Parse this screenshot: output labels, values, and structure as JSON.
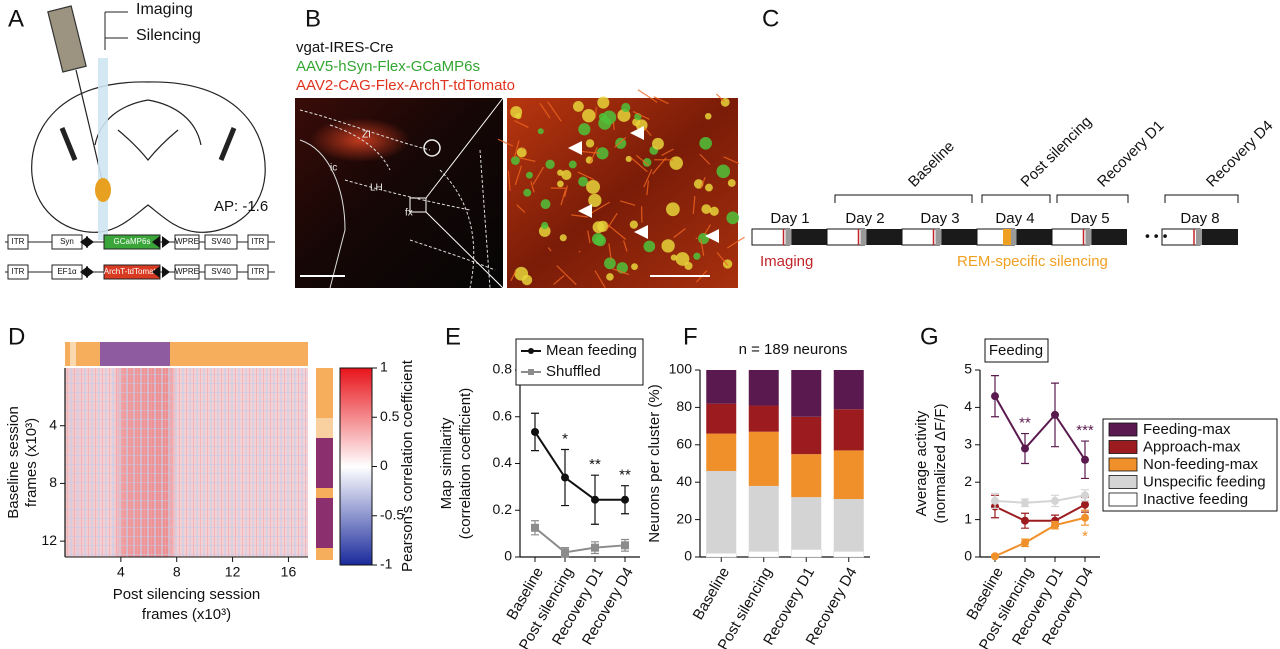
{
  "panels": {
    "A": {
      "letter": "A",
      "fiber_labels": [
        "Imaging",
        "Silencing"
      ],
      "coordinate": "AP: -1.6",
      "constructs": [
        [
          "ITR",
          "Syn",
          "GCaMP6s",
          "WPRE",
          "SV40",
          "ITR"
        ],
        [
          "ITR",
          "EF1α",
          "ArchT-tdTomato",
          "WPRE",
          "SV40",
          "ITR"
        ]
      ]
    },
    "B": {
      "letter": "B",
      "mouse_line": "vgat-IRES-Cre",
      "virus_green": "AAV5-hSyn-Flex-GCaMP6s",
      "virus_red": "AAV2-CAG-Flex-ArchT-tdTomato",
      "regions": [
        "ZI",
        "ic",
        "LH",
        "fx"
      ]
    },
    "C": {
      "letter": "C",
      "phases": [
        "Baseline",
        "Post silencing",
        "Recovery D1",
        "Recovery D4"
      ],
      "days": [
        "Day 1",
        "Day 2",
        "Day 3",
        "Day 4",
        "Day 5",
        "Day 8"
      ],
      "imaging": "Imaging",
      "silencing": "REM-specific silencing"
    }
  },
  "chart_data": [
    {
      "type": "heatmap",
      "letter": "D",
      "xlabel": [
        "Post silencing session",
        "frames (x10³)"
      ],
      "ylabel": [
        "Baseline session",
        "frames (x10³)"
      ],
      "xlim": [
        0,
        17.4
      ],
      "xticks": [
        4,
        8,
        12,
        16
      ],
      "ylim": [
        13.1,
        0
      ],
      "yticks": [
        4,
        8,
        12
      ],
      "colorbar_label": "Pearson's correlation coefficient",
      "clim": [
        -1,
        1
      ],
      "cticks": [
        1,
        0.5,
        0,
        -0.5,
        -1
      ],
      "colors": [
        "#1a2a9c",
        "#ffffff",
        "#e8141b"
      ]
    },
    {
      "type": "line",
      "letter": "E",
      "ylabel": [
        "Map similarity",
        "(correlation coefficient)"
      ],
      "categories": [
        "Baseline",
        "Post silencing",
        "Recovery D1",
        "Recovery D4"
      ],
      "ylim": [
        0,
        0.8
      ],
      "yticks": [
        0,
        0.2,
        0.4,
        0.6,
        0.8
      ],
      "legend": "upper right",
      "series": [
        {
          "name": "Mean feeding",
          "color": "#111111",
          "marker": "circle",
          "values": [
            0.535,
            0.34,
            0.245,
            0.245
          ],
          "errors": [
            0.08,
            0.12,
            0.105,
            0.06
          ],
          "significance": [
            null,
            "*",
            "**",
            "**"
          ]
        },
        {
          "name": "Shuffled",
          "color": "#8c8c8c",
          "marker": "square",
          "values": [
            0.125,
            0.02,
            0.04,
            0.05
          ],
          "errors": [
            0.03,
            0.02,
            0.025,
            0.025
          ]
        }
      ]
    },
    {
      "type": "stacked_bar",
      "letter": "F",
      "subtitle": "n = 189 neurons",
      "ylabel": [
        "Neurons per cluster (%)"
      ],
      "categories": [
        "Baseline",
        "Post silencing",
        "Recovery D1",
        "Recovery D4"
      ],
      "ylim": [
        0,
        100
      ],
      "yticks": [
        0,
        20,
        40,
        60,
        80,
        100
      ],
      "series": [
        {
          "color": "#ffffff",
          "values": [
            2,
            3,
            4,
            3
          ]
        },
        {
          "color": "#d4d4d4",
          "values": [
            44,
            35,
            28,
            28
          ]
        },
        {
          "color": "#f0902a",
          "values": [
            20,
            29,
            23,
            26
          ]
        },
        {
          "color": "#9b1b1f",
          "values": [
            16,
            14,
            20,
            22
          ]
        },
        {
          "color": "#5b1a4f",
          "values": [
            18,
            19,
            25,
            21
          ]
        }
      ]
    },
    {
      "type": "line",
      "letter": "G",
      "title": "Feeding",
      "ylabel": [
        "Average activity",
        "(normalized ΔF/F)"
      ],
      "categories": [
        "Baseline",
        "Post silencing",
        "Recovery D1",
        "Recovery D4"
      ],
      "ylim": [
        0,
        5
      ],
      "yticks": [
        0,
        1,
        2,
        3,
        4,
        5
      ],
      "legend": "right",
      "legend_entries": [
        {
          "name": "Feeding-max",
          "color": "#5b1a4f"
        },
        {
          "name": "Approach-max",
          "color": "#9b1b1f"
        },
        {
          "name": "Non-feeding-max",
          "color": "#f0902a"
        },
        {
          "name": "Unspecific feeding",
          "color": "#d4d4d4"
        },
        {
          "name": "Inactive feeding",
          "color": "#ffffff"
        }
      ],
      "series": [
        {
          "color": "#5b1a4f",
          "marker": "circle",
          "values": [
            4.3,
            2.9,
            3.8,
            2.6
          ],
          "errors": [
            0.55,
            0.4,
            0.85,
            0.5
          ],
          "significance": [
            null,
            "**",
            null,
            "***"
          ]
        },
        {
          "color": "#9b1b1f",
          "marker": "circle",
          "values": [
            1.35,
            0.97,
            0.97,
            1.4
          ],
          "errors": [
            0.3,
            0.2,
            0.15,
            0.2
          ]
        },
        {
          "color": "#f0902a",
          "marker": "circle",
          "values": [
            0.02,
            0.38,
            0.85,
            1.05
          ],
          "errors": [
            0.03,
            0.1,
            0.1,
            0.2
          ],
          "significance": [
            null,
            null,
            null,
            "*"
          ]
        },
        {
          "color": "#d4d4d4",
          "marker": "circle",
          "values": [
            1.5,
            1.45,
            1.5,
            1.65
          ],
          "errors": [
            0.2,
            0.1,
            0.15,
            0.15
          ]
        }
      ]
    }
  ]
}
